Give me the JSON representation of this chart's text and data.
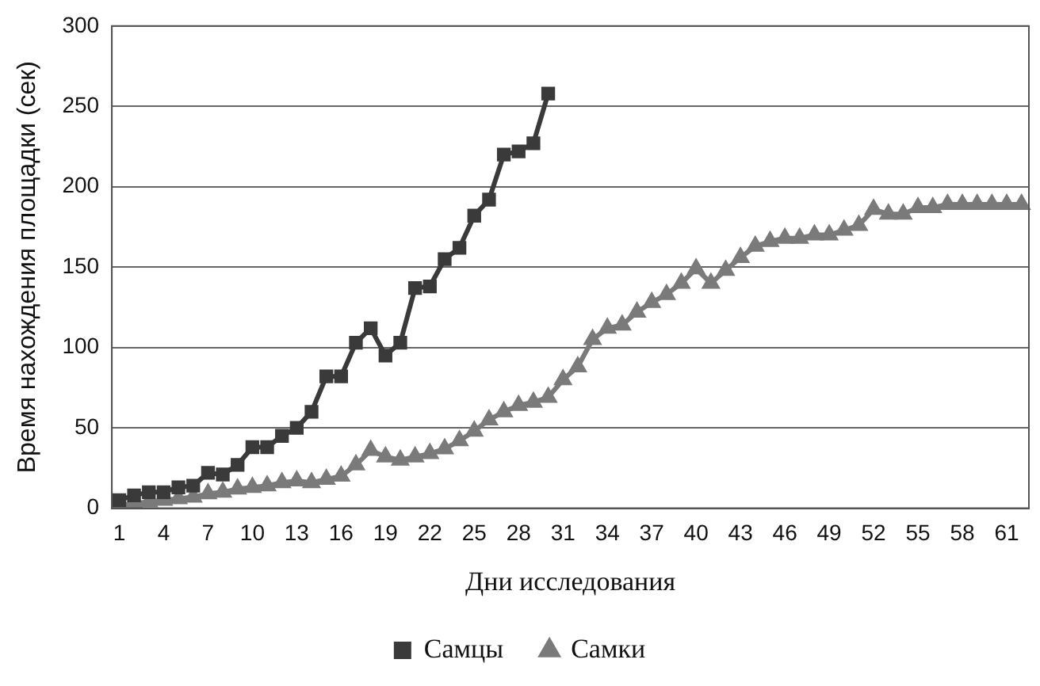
{
  "chart_data": {
    "type": "line",
    "xlabel": "Дни исследования",
    "ylabel": "Время нахождения площадки (сек)",
    "categories": [
      "1",
      null,
      null,
      "4",
      null,
      null,
      "7",
      null,
      null,
      "10",
      null,
      null,
      "13",
      null,
      null,
      "16",
      null,
      null,
      "19",
      null,
      null,
      "22",
      null,
      null,
      "25",
      null,
      null,
      "28",
      null,
      null,
      "31",
      null,
      null,
      "34",
      null,
      null,
      "37",
      null,
      null,
      "40",
      null,
      null,
      "43",
      null,
      null,
      "46",
      null,
      null,
      "49",
      null,
      null,
      "52",
      null,
      null,
      "55",
      null,
      null,
      "58",
      null,
      null,
      "61",
      null
    ],
    "series": [
      {
        "name": "Самцы",
        "color": "#3a3a3a",
        "marker": "square",
        "values": [
          5,
          8,
          10,
          10,
          13,
          14,
          22,
          21,
          27,
          38,
          38,
          45,
          50,
          60,
          82,
          82,
          103,
          112,
          95,
          103,
          137,
          138,
          155,
          162,
          182,
          192,
          220,
          222,
          227,
          258,
          null,
          null,
          null,
          null,
          null,
          null,
          null,
          null,
          null,
          null,
          null,
          null,
          null,
          null,
          null,
          null,
          null,
          null,
          null,
          null,
          null,
          null,
          null,
          null,
          null,
          null,
          null,
          null,
          null,
          null,
          null,
          null
        ]
      },
      {
        "name": "Самки",
        "color": "#7a7a7a",
        "marker": "triangle",
        "values": [
          2,
          3,
          4,
          5,
          6,
          7,
          9,
          10,
          12,
          13,
          14,
          16,
          17,
          16,
          18,
          20,
          27,
          36,
          32,
          30,
          32,
          34,
          37,
          42,
          48,
          55,
          60,
          64,
          66,
          69,
          80,
          88,
          105,
          112,
          114,
          122,
          128,
          133,
          140,
          149,
          140,
          148,
          156,
          163,
          166,
          168,
          168,
          170,
          170,
          173,
          176,
          186,
          183,
          183,
          187,
          187,
          189,
          189,
          189,
          189,
          189,
          189
        ]
      }
    ],
    "ylim": [
      0,
      300
    ],
    "yticks": [
      0,
      50,
      100,
      150,
      200,
      250,
      300
    ],
    "grid": "y",
    "legend": "bottom",
    "line_style": "solid"
  }
}
